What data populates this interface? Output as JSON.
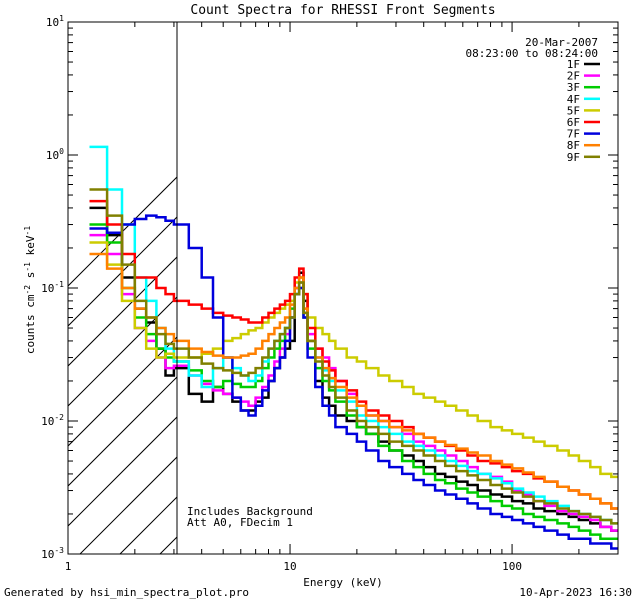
{
  "chart_data": {
    "type": "line",
    "title": "Count Spectra for RHESSI Front Segments",
    "xlabel": "Energy (keV)",
    "ylabel": "counts cm-2 s-1 keV-1",
    "xscale": "log",
    "yscale": "log",
    "xlim": [
      1,
      300
    ],
    "ylim": [
      0.001,
      10
    ],
    "x_tick_labels": [
      "1",
      "10",
      "100"
    ],
    "y_tick_labels": [
      {
        "base": "10",
        "exp": "-3"
      },
      {
        "base": "10",
        "exp": "-2"
      },
      {
        "base": "10",
        "exp": "-1"
      },
      {
        "base": "10",
        "exp": "0"
      },
      {
        "base": "10",
        "exp": "1"
      }
    ],
    "date": "20-Mar-2007",
    "time_range": "08:23:00 to 08:24:00",
    "hatched_region_max_kev": 3,
    "annotations": [
      "Includes Background",
      "Att A0, FDecim 1"
    ],
    "energies": [
      1.25,
      1.5,
      1.75,
      2.0,
      2.25,
      2.5,
      2.75,
      3.0,
      3.5,
      4.0,
      4.5,
      5.0,
      5.5,
      6.0,
      6.5,
      7.0,
      7.5,
      8.0,
      8.5,
      9.0,
      9.5,
      10.0,
      10.5,
      11.0,
      11.5,
      12.0,
      13,
      14,
      15,
      16,
      18,
      20,
      22,
      25,
      28,
      32,
      36,
      40,
      45,
      50,
      56,
      63,
      70,
      80,
      90,
      100,
      112,
      125,
      140,
      160,
      180,
      200,
      225,
      250,
      280
    ],
    "series": [
      {
        "name": "1F",
        "color": "#000000",
        "values": [
          0.4,
          0.25,
          0.12,
          0.07,
          0.055,
          0.035,
          0.022,
          0.025,
          0.016,
          0.014,
          0.018,
          0.016,
          0.014,
          0.012,
          0.012,
          0.014,
          0.015,
          0.02,
          0.025,
          0.03,
          0.035,
          0.04,
          0.1,
          0.13,
          0.08,
          0.04,
          0.02,
          0.015,
          0.013,
          0.011,
          0.01,
          0.009,
          0.008,
          0.007,
          0.006,
          0.0055,
          0.005,
          0.0045,
          0.004,
          0.0038,
          0.0035,
          0.0033,
          0.003,
          0.0028,
          0.0027,
          0.0025,
          0.0024,
          0.0022,
          0.0021,
          0.002,
          0.0019,
          0.0018,
          0.0017,
          0.0016,
          0.0015
        ]
      },
      {
        "name": "2F",
        "color": "#ff00ff",
        "values": [
          0.25,
          0.18,
          0.09,
          0.05,
          0.04,
          0.03,
          0.025,
          0.026,
          0.022,
          0.019,
          0.017,
          0.016,
          0.015,
          0.014,
          0.013,
          0.015,
          0.018,
          0.022,
          0.028,
          0.035,
          0.045,
          0.06,
          0.1,
          0.11,
          0.07,
          0.045,
          0.035,
          0.03,
          0.025,
          0.02,
          0.016,
          0.013,
          0.011,
          0.01,
          0.009,
          0.008,
          0.007,
          0.0065,
          0.006,
          0.0055,
          0.005,
          0.0045,
          0.004,
          0.0038,
          0.0035,
          0.003,
          0.0028,
          0.0025,
          0.0023,
          0.0021,
          0.002,
          0.0019,
          0.0018,
          0.0016,
          0.0015
        ]
      },
      {
        "name": "3F",
        "color": "#00cc00",
        "values": [
          0.3,
          0.22,
          0.1,
          0.06,
          0.045,
          0.035,
          0.03,
          0.028,
          0.024,
          0.02,
          0.018,
          0.02,
          0.019,
          0.018,
          0.018,
          0.02,
          0.025,
          0.03,
          0.035,
          0.04,
          0.05,
          0.07,
          0.09,
          0.1,
          0.06,
          0.035,
          0.025,
          0.02,
          0.017,
          0.014,
          0.011,
          0.009,
          0.008,
          0.0065,
          0.006,
          0.005,
          0.0045,
          0.004,
          0.0036,
          0.0034,
          0.0031,
          0.0029,
          0.0027,
          0.0025,
          0.0023,
          0.0022,
          0.002,
          0.0019,
          0.0018,
          0.0017,
          0.0016,
          0.0015,
          0.0014,
          0.0013,
          0.0013
        ]
      },
      {
        "name": "4F",
        "color": "#00ffff",
        "values": [
          1.15,
          0.55,
          0.3,
          0.12,
          0.08,
          0.05,
          0.035,
          0.028,
          0.022,
          0.018,
          0.025,
          0.03,
          0.025,
          0.022,
          0.02,
          0.022,
          0.028,
          0.035,
          0.04,
          0.045,
          0.05,
          0.06,
          0.09,
          0.11,
          0.065,
          0.04,
          0.03,
          0.024,
          0.02,
          0.017,
          0.014,
          0.011,
          0.01,
          0.009,
          0.008,
          0.007,
          0.0065,
          0.006,
          0.0055,
          0.005,
          0.0046,
          0.0042,
          0.004,
          0.0037,
          0.0034,
          0.0031,
          0.0029,
          0.0027,
          0.0025,
          0.0023,
          0.0021,
          0.002,
          0.0019,
          0.0018,
          0.0017
        ]
      },
      {
        "name": "5F",
        "color": "#cccc00",
        "values": [
          0.22,
          0.15,
          0.08,
          0.05,
          0.035,
          0.03,
          0.032,
          0.03,
          0.03,
          0.032,
          0.035,
          0.04,
          0.042,
          0.045,
          0.048,
          0.05,
          0.055,
          0.06,
          0.065,
          0.07,
          0.075,
          0.08,
          0.11,
          0.12,
          0.09,
          0.06,
          0.05,
          0.045,
          0.04,
          0.035,
          0.03,
          0.028,
          0.025,
          0.022,
          0.02,
          0.018,
          0.016,
          0.015,
          0.014,
          0.013,
          0.012,
          0.011,
          0.01,
          0.009,
          0.0085,
          0.008,
          0.0075,
          0.007,
          0.0065,
          0.006,
          0.0055,
          0.005,
          0.0045,
          0.004,
          0.0038
        ]
      },
      {
        "name": "6F",
        "color": "#ff0000",
        "values": [
          0.45,
          0.3,
          0.18,
          0.12,
          0.12,
          0.1,
          0.09,
          0.08,
          0.075,
          0.07,
          0.065,
          0.062,
          0.06,
          0.058,
          0.055,
          0.055,
          0.06,
          0.065,
          0.07,
          0.075,
          0.08,
          0.09,
          0.12,
          0.14,
          0.09,
          0.05,
          0.035,
          0.028,
          0.024,
          0.02,
          0.017,
          0.014,
          0.012,
          0.011,
          0.01,
          0.009,
          0.008,
          0.0075,
          0.007,
          0.0065,
          0.006,
          0.0055,
          0.005,
          0.0048,
          0.0045,
          0.0042,
          0.004,
          0.0037,
          0.0035,
          0.0032,
          0.003,
          0.0028,
          0.0026,
          0.0024,
          0.0022
        ]
      },
      {
        "name": "7F",
        "color": "#0000dd",
        "values": [
          0.28,
          0.26,
          0.3,
          0.33,
          0.35,
          0.34,
          0.32,
          0.3,
          0.2,
          0.12,
          0.06,
          0.03,
          0.015,
          0.012,
          0.011,
          0.013,
          0.017,
          0.02,
          0.025,
          0.03,
          0.04,
          0.06,
          0.09,
          0.1,
          0.06,
          0.03,
          0.018,
          0.013,
          0.011,
          0.009,
          0.008,
          0.007,
          0.006,
          0.005,
          0.0045,
          0.004,
          0.0036,
          0.0033,
          0.003,
          0.0028,
          0.0026,
          0.0024,
          0.0022,
          0.002,
          0.0019,
          0.0018,
          0.0017,
          0.0016,
          0.0015,
          0.0014,
          0.0013,
          0.0013,
          0.0012,
          0.0012,
          0.0011
        ]
      },
      {
        "name": "8F",
        "color": "#ff8000",
        "values": [
          0.18,
          0.14,
          0.1,
          0.07,
          0.06,
          0.05,
          0.045,
          0.04,
          0.035,
          0.033,
          0.031,
          0.03,
          0.03,
          0.031,
          0.032,
          0.035,
          0.04,
          0.045,
          0.05,
          0.055,
          0.06,
          0.075,
          0.1,
          0.12,
          0.07,
          0.04,
          0.03,
          0.025,
          0.021,
          0.018,
          0.015,
          0.013,
          0.011,
          0.01,
          0.009,
          0.0085,
          0.008,
          0.0075,
          0.007,
          0.0066,
          0.0062,
          0.0058,
          0.0055,
          0.005,
          0.0047,
          0.0044,
          0.0041,
          0.0038,
          0.0035,
          0.0032,
          0.003,
          0.0028,
          0.0026,
          0.0024,
          0.0022
        ]
      },
      {
        "name": "9F",
        "color": "#808000",
        "values": [
          0.55,
          0.35,
          0.15,
          0.08,
          0.06,
          0.045,
          0.038,
          0.035,
          0.03,
          0.027,
          0.025,
          0.024,
          0.023,
          0.022,
          0.023,
          0.025,
          0.03,
          0.035,
          0.04,
          0.045,
          0.05,
          0.06,
          0.09,
          0.11,
          0.065,
          0.04,
          0.028,
          0.022,
          0.018,
          0.015,
          0.012,
          0.01,
          0.009,
          0.008,
          0.007,
          0.0065,
          0.006,
          0.0055,
          0.005,
          0.0046,
          0.0042,
          0.0039,
          0.0036,
          0.0033,
          0.0031,
          0.0029,
          0.0027,
          0.0025,
          0.0024,
          0.0022,
          0.0021,
          0.002,
          0.0019,
          0.0018,
          0.0017
        ]
      }
    ]
  },
  "footer": {
    "left": "Generated by hsi_min_spectra_plot.pro",
    "right": "10-Apr-2023 16:30"
  }
}
